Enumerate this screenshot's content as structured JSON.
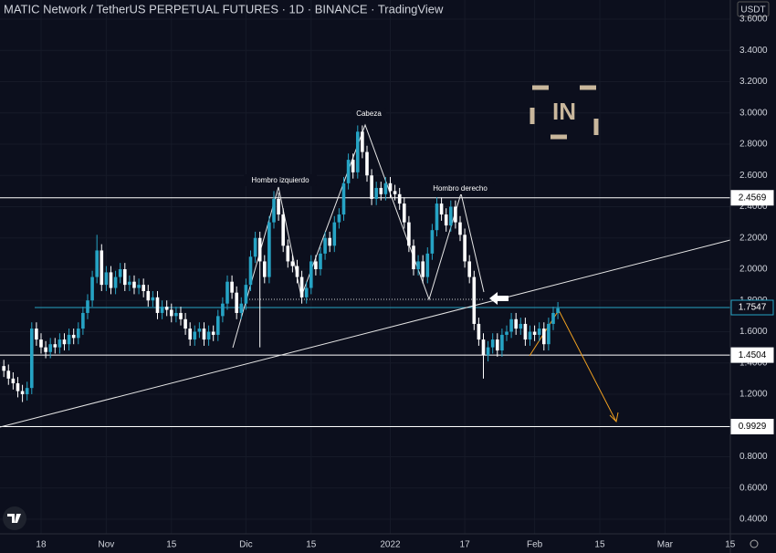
{
  "chart_data": {
    "type": "candlestick",
    "title": "MATIC Network / TetherUS PERPETUAL FUTURES · 1D · BINANCE · TradingView",
    "y_unit": "USDT",
    "logo_text": "IN",
    "annotations": [
      "Hombro izquierdo",
      "Cabeza",
      "Hombro derecho"
    ],
    "up_color": "#26a3c4",
    "down_color": "#ffffff",
    "xlim": [
      -8.82,
      148.04
    ],
    "ylim": [
      0.3066,
      3.7226
    ],
    "xticks": [
      {
        "value": 0,
        "label": "18"
      },
      {
        "value": 14,
        "label": "Nov"
      },
      {
        "value": 28,
        "label": "15"
      },
      {
        "value": 44,
        "label": "Dic"
      },
      {
        "value": 58,
        "label": "15"
      },
      {
        "value": 75,
        "label": "2022"
      },
      {
        "value": 91,
        "label": "17"
      },
      {
        "value": 106,
        "label": "Feb"
      },
      {
        "value": 120,
        "label": "15"
      },
      {
        "value": 134,
        "label": "Mar"
      },
      {
        "value": 148,
        "label": "15"
      }
    ],
    "yticks": [
      {
        "value": 0.4,
        "label": "0.4000"
      },
      {
        "value": 0.6,
        "label": "0.6000"
      },
      {
        "value": 0.8,
        "label": "0.8000"
      },
      {
        "value": 1.0,
        "label": "1.0000"
      },
      {
        "value": 1.2,
        "label": "1.2000"
      },
      {
        "value": 1.4,
        "label": "1.4000"
      },
      {
        "value": 1.6,
        "label": "1.6000"
      },
      {
        "value": 1.8,
        "label": "1.8000"
      },
      {
        "value": 2.0,
        "label": "2.0000"
      },
      {
        "value": 2.2,
        "label": "2.2000"
      },
      {
        "value": 2.4,
        "label": "2.4000"
      },
      {
        "value": 2.6,
        "label": "2.6000"
      },
      {
        "value": 2.8,
        "label": "2.8000"
      },
      {
        "value": 3.0,
        "label": "3.0000"
      },
      {
        "value": 3.2,
        "label": "3.2000"
      },
      {
        "value": 3.4,
        "label": "3.4000"
      },
      {
        "value": 3.6,
        "label": "3.6000"
      }
    ],
    "levels": [
      {
        "value": 2.4569,
        "color": "#ffffff"
      },
      {
        "value": 1.7547,
        "color": "#26a3c4"
      },
      {
        "value": 1.4504,
        "color": "#ffffff"
      },
      {
        "value": 0.9929,
        "color": "#ffffff"
      }
    ],
    "x": [
      -8,
      -7,
      -6,
      -5,
      -4,
      -3,
      -2,
      -1,
      0,
      1,
      2,
      3,
      4,
      5,
      6,
      7,
      8,
      9,
      10,
      11,
      12,
      13,
      14,
      15,
      16,
      17,
      18,
      19,
      20,
      21,
      22,
      23,
      24,
      25,
      26,
      27,
      28,
      29,
      30,
      31,
      32,
      33,
      34,
      35,
      36,
      37,
      38,
      39,
      40,
      41,
      42,
      43,
      44,
      45,
      46,
      47,
      48,
      49,
      50,
      51,
      52,
      53,
      54,
      55,
      56,
      57,
      58,
      59,
      60,
      61,
      62,
      63,
      64,
      65,
      66,
      67,
      68,
      69,
      70,
      71,
      72,
      73,
      74,
      75,
      76,
      77,
      78,
      79,
      80,
      81,
      82,
      83,
      84,
      85,
      86,
      87,
      88,
      89,
      90,
      91,
      92,
      93,
      94,
      95,
      96,
      97,
      98,
      99,
      100,
      101,
      102,
      103,
      104,
      105,
      106,
      107,
      108,
      109,
      110,
      111
    ],
    "open": [
      1.38,
      1.35,
      1.3,
      1.27,
      1.22,
      1.2,
      1.24,
      1.62,
      1.55,
      1.5,
      1.47,
      1.52,
      1.5,
      1.55,
      1.52,
      1.58,
      1.56,
      1.62,
      1.72,
      1.8,
      1.95,
      2.12,
      1.9,
      1.98,
      1.88,
      1.95,
      2.0,
      1.9,
      1.92,
      1.88,
      1.9,
      1.86,
      1.8,
      1.82,
      1.72,
      1.76,
      1.74,
      1.7,
      1.72,
      1.68,
      1.62,
      1.55,
      1.6,
      1.62,
      1.55,
      1.6,
      1.58,
      1.7,
      1.78,
      1.92,
      1.85,
      1.72,
      1.78,
      1.9,
      2.08,
      2.2,
      2.05,
      1.95,
      2.3,
      2.45,
      2.35,
      2.15,
      2.05,
      2.02,
      1.95,
      1.82,
      1.88,
      2.05,
      2.0,
      2.1,
      2.2,
      2.15,
      2.3,
      2.35,
      2.55,
      2.7,
      2.62,
      2.88,
      2.75,
      2.6,
      2.45,
      2.52,
      2.48,
      2.55,
      2.5,
      2.48,
      2.42,
      2.3,
      2.15,
      2.0,
      2.05,
      1.95,
      2.1,
      2.25,
      2.42,
      2.35,
      2.28,
      2.4,
      2.3,
      2.22,
      2.05,
      1.95,
      1.65,
      1.55,
      1.45,
      1.5,
      1.55,
      1.48,
      1.58,
      1.6,
      1.68,
      1.62,
      1.65,
      1.55,
      1.6,
      1.58,
      1.62,
      1.52,
      1.65,
      1.72
    ],
    "high": [
      1.42,
      1.39,
      1.34,
      1.31,
      1.26,
      1.28,
      1.66,
      1.66,
      1.59,
      1.54,
      1.56,
      1.56,
      1.59,
      1.59,
      1.62,
      1.62,
      1.66,
      1.76,
      1.84,
      1.99,
      2.22,
      2.16,
      2.02,
      2.02,
      1.99,
      2.04,
      2.04,
      1.96,
      1.96,
      1.94,
      1.94,
      1.9,
      1.86,
      1.86,
      1.8,
      1.8,
      1.78,
      1.76,
      1.76,
      1.72,
      1.66,
      1.64,
      1.66,
      1.66,
      1.64,
      1.64,
      1.74,
      1.82,
      1.96,
      1.96,
      1.89,
      1.82,
      1.94,
      2.12,
      2.24,
      2.24,
      2.09,
      2.34,
      2.5,
      2.49,
      2.39,
      2.19,
      2.09,
      2.06,
      1.99,
      1.92,
      2.09,
      2.09,
      2.14,
      2.24,
      2.24,
      2.34,
      2.39,
      2.59,
      2.74,
      2.74,
      2.92,
      2.92,
      2.79,
      2.64,
      2.56,
      2.56,
      2.59,
      2.59,
      2.54,
      2.52,
      2.46,
      2.34,
      2.19,
      2.09,
      2.09,
      2.14,
      2.29,
      2.46,
      2.46,
      2.39,
      2.44,
      2.44,
      2.34,
      2.26,
      2.09,
      1.99,
      1.69,
      1.59,
      1.54,
      1.59,
      1.59,
      1.62,
      1.64,
      1.72,
      1.72,
      1.69,
      1.69,
      1.64,
      1.64,
      1.66,
      1.66,
      1.69,
      1.76,
      1.79
    ],
    "low": [
      1.31,
      1.26,
      1.23,
      1.18,
      1.15,
      1.16,
      1.2,
      1.51,
      1.46,
      1.43,
      1.43,
      1.46,
      1.46,
      1.48,
      1.48,
      1.52,
      1.52,
      1.58,
      1.68,
      1.76,
      1.91,
      1.86,
      1.86,
      1.84,
      1.84,
      1.91,
      1.86,
      1.86,
      1.84,
      1.84,
      1.82,
      1.76,
      1.76,
      1.68,
      1.68,
      1.7,
      1.66,
      1.66,
      1.64,
      1.58,
      1.51,
      1.51,
      1.56,
      1.51,
      1.51,
      1.54,
      1.54,
      1.66,
      1.74,
      1.81,
      1.68,
      1.68,
      1.74,
      1.86,
      2.04,
      1.5,
      1.91,
      1.91,
      2.26,
      2.31,
      2.11,
      2.01,
      1.98,
      1.91,
      1.78,
      1.78,
      1.84,
      1.96,
      1.96,
      2.06,
      2.11,
      2.11,
      2.26,
      2.31,
      2.51,
      2.58,
      2.58,
      2.71,
      2.56,
      2.41,
      2.41,
      2.44,
      2.44,
      2.46,
      2.44,
      2.38,
      2.26,
      2.11,
      1.96,
      1.96,
      1.91,
      1.91,
      2.06,
      2.21,
      2.31,
      2.24,
      2.24,
      2.26,
      2.18,
      2.01,
      1.91,
      1.61,
      1.51,
      1.3,
      1.41,
      1.46,
      1.44,
      1.44,
      1.54,
      1.56,
      1.58,
      1.58,
      1.51,
      1.51,
      1.54,
      1.54,
      1.48,
      1.48,
      1.61,
      1.68
    ],
    "close": [
      1.35,
      1.3,
      1.27,
      1.22,
      1.2,
      1.24,
      1.62,
      1.55,
      1.5,
      1.47,
      1.52,
      1.5,
      1.55,
      1.52,
      1.58,
      1.56,
      1.62,
      1.72,
      1.8,
      1.95,
      2.12,
      1.9,
      1.98,
      1.88,
      1.95,
      2.0,
      1.9,
      1.92,
      1.88,
      1.9,
      1.86,
      1.8,
      1.82,
      1.72,
      1.76,
      1.74,
      1.7,
      1.72,
      1.68,
      1.62,
      1.55,
      1.6,
      1.62,
      1.55,
      1.6,
      1.58,
      1.7,
      1.78,
      1.92,
      1.85,
      1.72,
      1.78,
      1.9,
      2.08,
      2.2,
      2.05,
      1.95,
      2.3,
      2.45,
      2.35,
      2.15,
      2.05,
      2.02,
      1.95,
      1.82,
      1.88,
      2.05,
      2.0,
      2.1,
      2.2,
      2.15,
      2.3,
      2.35,
      2.55,
      2.7,
      2.62,
      2.88,
      2.75,
      2.6,
      2.45,
      2.52,
      2.48,
      2.55,
      2.5,
      2.48,
      2.42,
      2.3,
      2.15,
      2.0,
      2.05,
      1.95,
      2.1,
      2.25,
      2.42,
      2.35,
      2.28,
      2.4,
      2.3,
      2.22,
      2.05,
      1.95,
      1.65,
      1.55,
      1.45,
      1.5,
      1.55,
      1.48,
      1.58,
      1.6,
      1.68,
      1.62,
      1.65,
      1.55,
      1.6,
      1.58,
      1.62,
      1.52,
      1.65,
      1.72,
      1.75
    ]
  }
}
